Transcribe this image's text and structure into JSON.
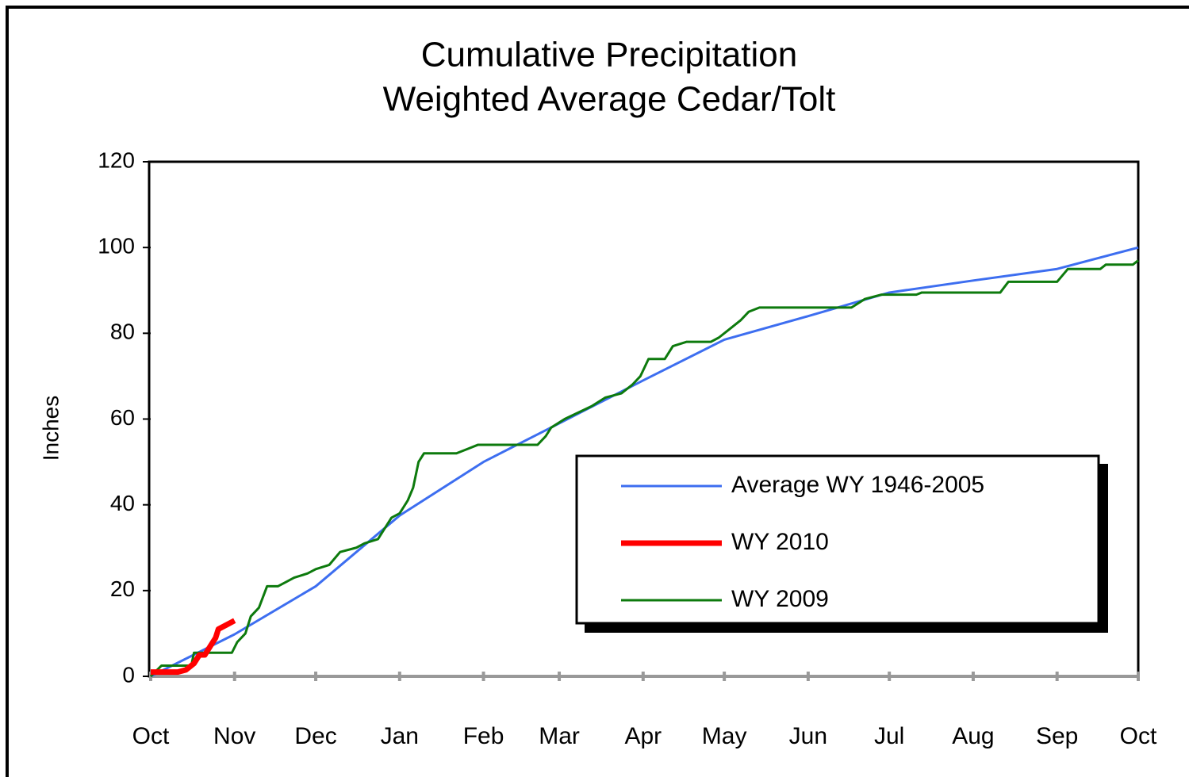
{
  "chart_data": {
    "type": "line",
    "title": "Cumulative Precipitation",
    "subtitle": "Weighted Average Cedar/Tolt",
    "y_label": "Inches",
    "xlim": [
      0,
      365
    ],
    "ylim": [
      0,
      120
    ],
    "yticks": [
      0,
      20,
      40,
      60,
      80,
      100,
      120
    ],
    "xticks": [
      {
        "value": 0,
        "label": "Oct"
      },
      {
        "value": 31,
        "label": "Nov"
      },
      {
        "value": 61,
        "label": "Dec"
      },
      {
        "value": 92,
        "label": "Jan"
      },
      {
        "value": 123,
        "label": "Feb"
      },
      {
        "value": 151,
        "label": "Mar"
      },
      {
        "value": 182,
        "label": "Apr"
      },
      {
        "value": 212,
        "label": "May"
      },
      {
        "value": 243,
        "label": "Jun"
      },
      {
        "value": 273,
        "label": "Jul"
      },
      {
        "value": 304,
        "label": "Aug"
      },
      {
        "value": 335,
        "label": "Sep"
      },
      {
        "value": 365,
        "label": "Oct"
      }
    ],
    "series": [
      {
        "name": "Average WY 1946-2005",
        "color": "#3d6ef0",
        "width": 3,
        "x": [
          0,
          31,
          61,
          92,
          123,
          151,
          182,
          212,
          243,
          273,
          304,
          335,
          365
        ],
        "values": [
          0,
          9.8,
          21,
          37.5,
          50,
          59,
          69,
          78.5,
          84,
          89.5,
          92.3,
          95,
          100
        ]
      },
      {
        "name": "WY 2010",
        "color": "#ff0000",
        "width": 7,
        "x": [
          0,
          10,
          13,
          16,
          18,
          20,
          22,
          24,
          25,
          28,
          31
        ],
        "values": [
          1,
          1,
          1.5,
          3,
          5,
          5,
          7,
          9,
          11,
          12,
          13
        ]
      },
      {
        "name": "WY 2009",
        "color": "#0d7a0d",
        "width": 3,
        "x": [
          0,
          4,
          15,
          16,
          30,
          32,
          35,
          37,
          40,
          43,
          47,
          50,
          53,
          58,
          61,
          66,
          70,
          76,
          79,
          84,
          87,
          89,
          92,
          95,
          97,
          99,
          101,
          113,
          117,
          121,
          143,
          146,
          148,
          153,
          163,
          168,
          174,
          178,
          181,
          184,
          190,
          193,
          198,
          207,
          210,
          214,
          218,
          221,
          225,
          259,
          264,
          270,
          283,
          285,
          314,
          317,
          335,
          339,
          351,
          353,
          363,
          365
        ],
        "values": [
          0,
          2.5,
          2.5,
          5.5,
          5.5,
          8,
          10,
          14,
          16,
          21,
          21,
          22,
          23,
          24,
          25,
          26,
          29,
          30,
          31,
          32,
          35,
          37,
          38,
          41,
          44,
          50,
          52,
          52,
          53,
          54,
          54,
          56,
          58,
          60,
          63,
          65,
          66,
          68,
          70,
          74,
          74,
          77,
          78,
          78,
          79,
          81,
          83,
          85,
          86,
          86,
          88,
          89,
          89,
          89.5,
          89.5,
          92,
          92,
          95,
          95,
          96,
          96,
          97
        ]
      }
    ]
  }
}
